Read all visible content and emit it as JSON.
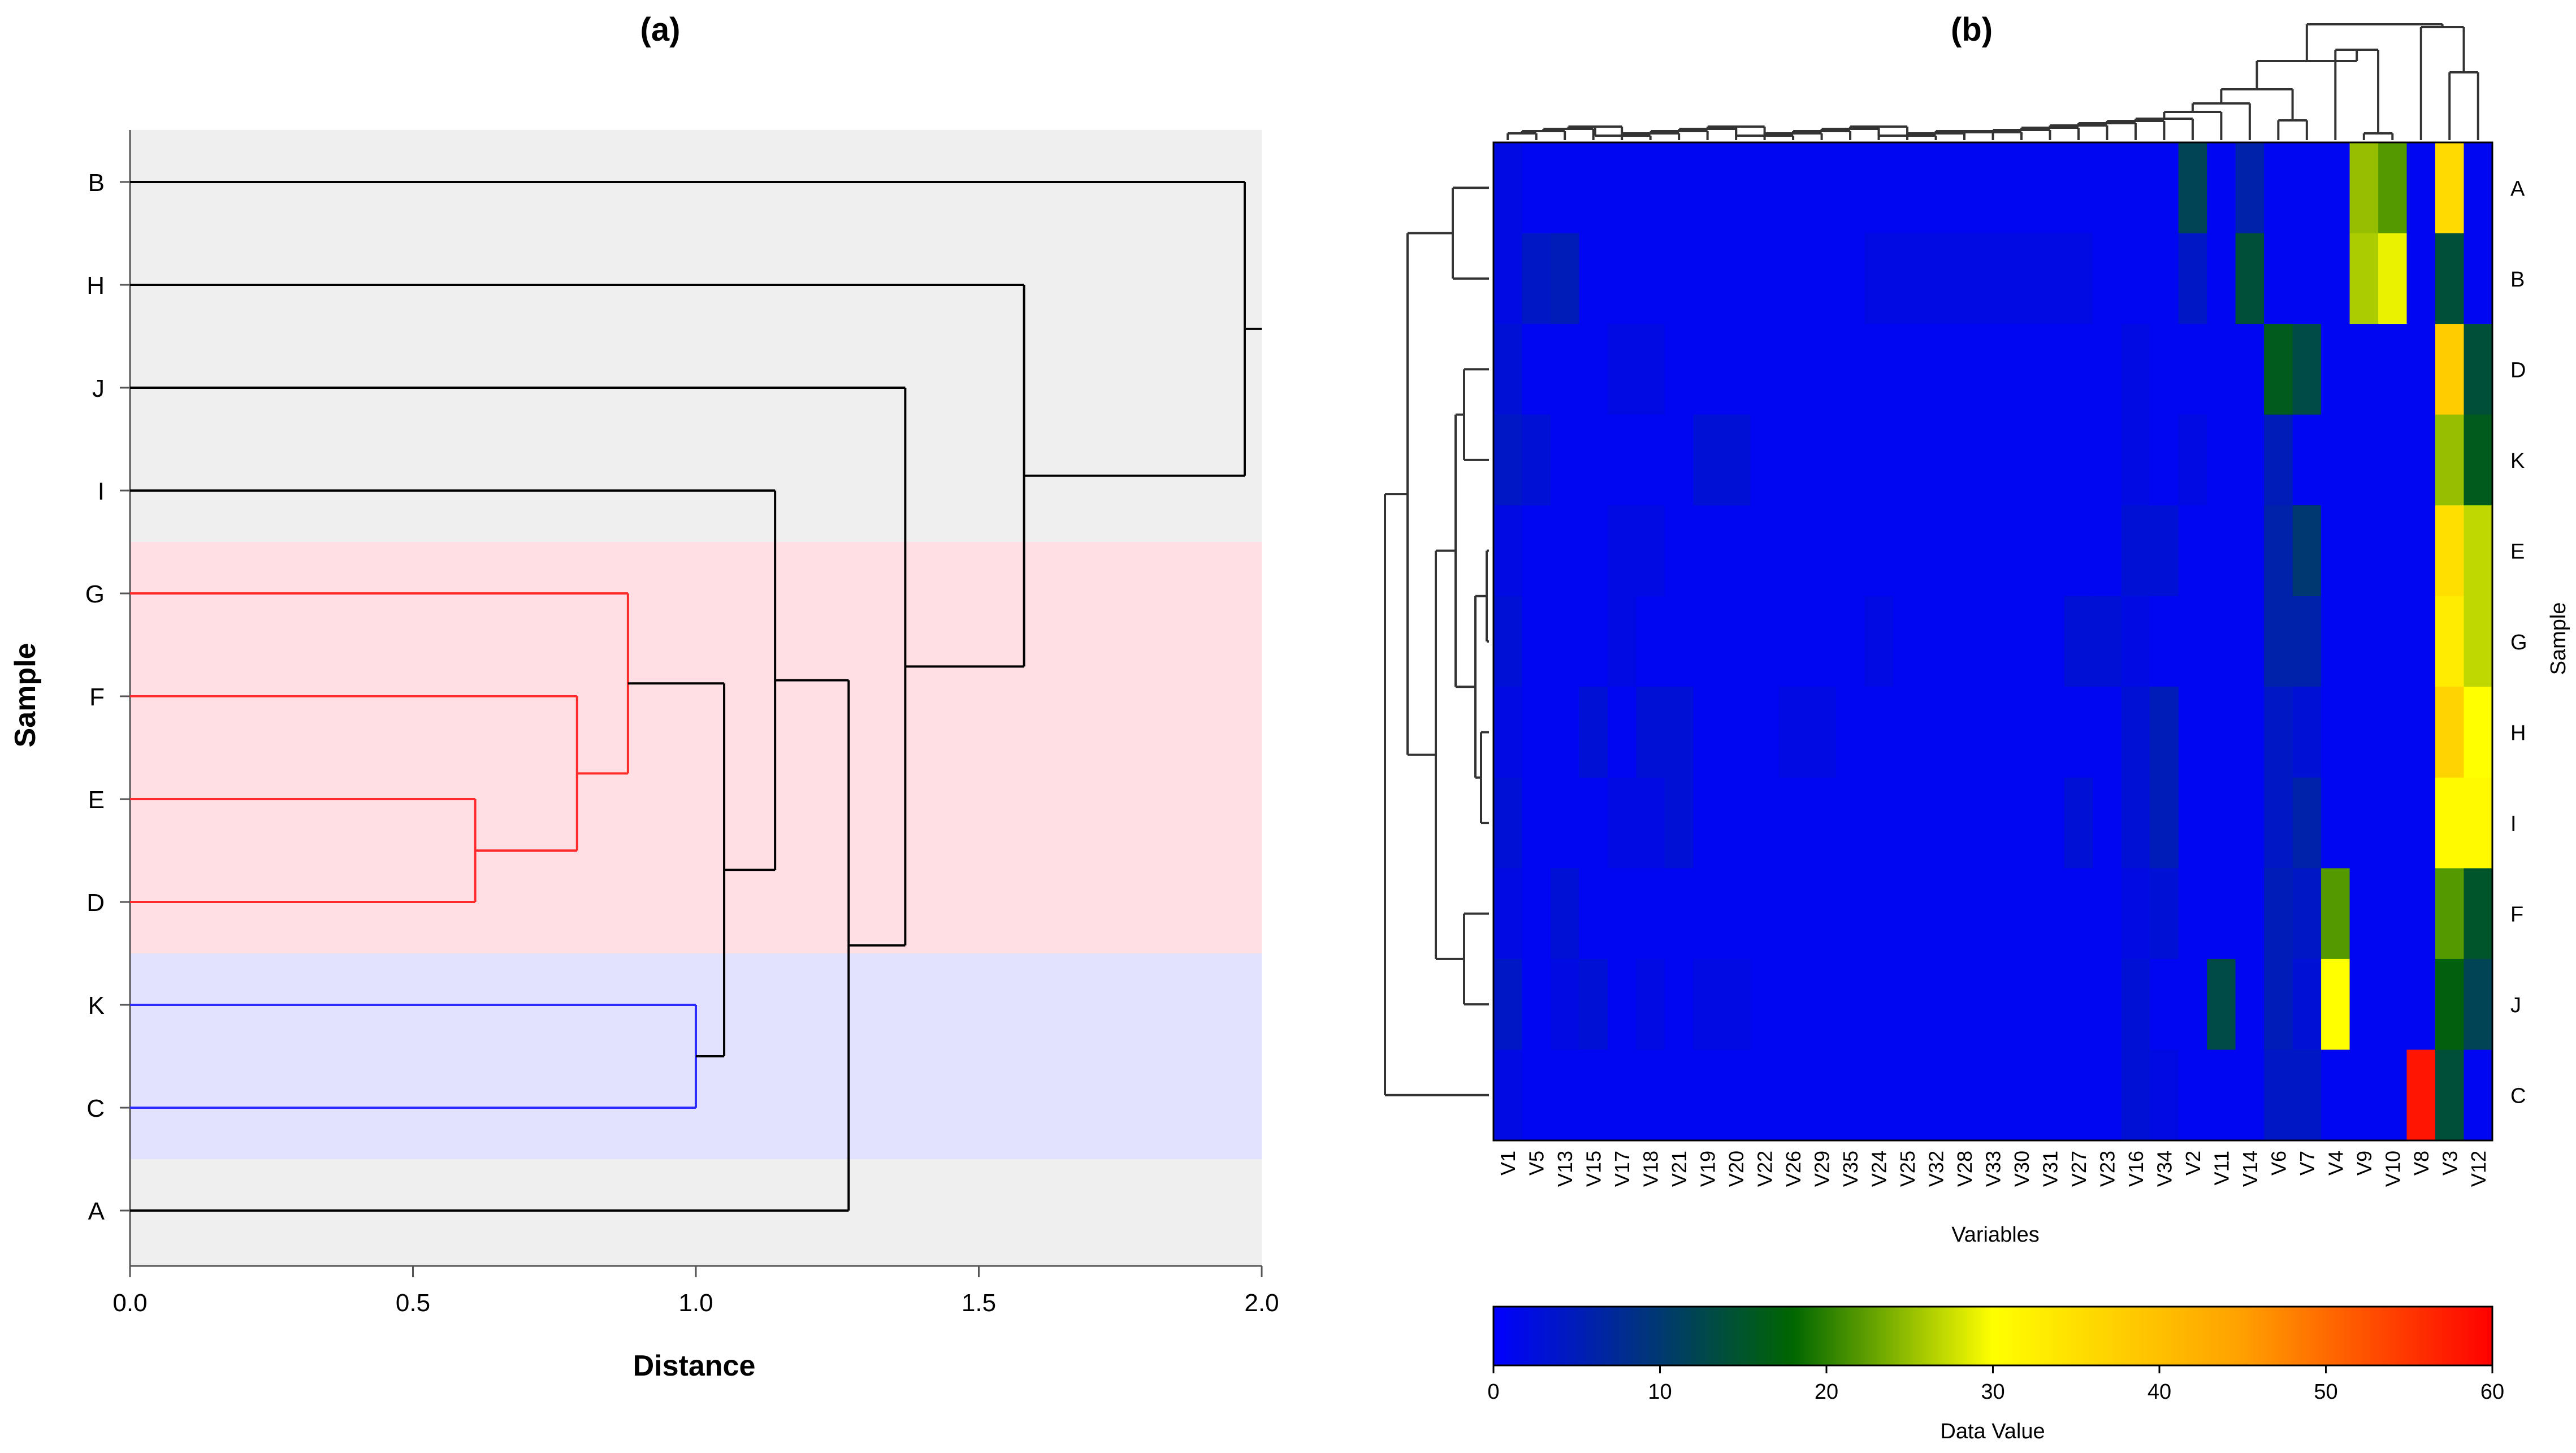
{
  "panel_a_title": "(a)",
  "panel_b_title": "(b)",
  "chart_data": [
    {
      "type": "dendrogram",
      "panel": "(a)",
      "xlabel": "Distance",
      "ylabel": "Sample",
      "xlim": [
        0,
        2.0
      ],
      "x_ticks": [
        "0.0",
        "0.5",
        "1.0",
        "1.5",
        "2.0"
      ],
      "leaves": [
        "B",
        "H",
        "J",
        "I",
        "G",
        "F",
        "E",
        "D",
        "K",
        "C",
        "A"
      ],
      "colors": {
        "default": "#000000",
        "red_cluster": "#ff2a2a",
        "blue_cluster": "#2b2bff",
        "bg_grey": "#efefef",
        "bg_red": "#ffdfe3",
        "bg_blue": "#e2e2ff"
      },
      "bands": [
        {
          "color": "grey",
          "from_leaf": "B",
          "to_leaf": "I"
        },
        {
          "color": "red",
          "from_leaf": "G",
          "to_leaf": "D"
        },
        {
          "color": "blue",
          "from_leaf": "K",
          "to_leaf": "C"
        },
        {
          "color": "grey",
          "from_leaf": "A",
          "to_leaf": "A"
        }
      ],
      "merges": [
        {
          "id": "m1",
          "children": [
            "E",
            "D"
          ],
          "height": 0.61,
          "color": "red"
        },
        {
          "id": "m2",
          "children": [
            "F",
            "m1"
          ],
          "height": 0.79,
          "color": "red"
        },
        {
          "id": "m3",
          "children": [
            "G",
            "m2"
          ],
          "height": 0.88,
          "color": "red"
        },
        {
          "id": "m4",
          "children": [
            "K",
            "C"
          ],
          "height": 1.0,
          "color": "blue"
        },
        {
          "id": "m5",
          "children": [
            "m3",
            "m4"
          ],
          "height": 1.05,
          "color": "default"
        },
        {
          "id": "m6",
          "children": [
            "I",
            "m5"
          ],
          "height": 1.14,
          "color": "default"
        },
        {
          "id": "m7",
          "children": [
            "m6",
            "A"
          ],
          "height": 1.27,
          "color": "default"
        },
        {
          "id": "m8",
          "children": [
            "J",
            "m7"
          ],
          "height": 1.37,
          "color": "default"
        },
        {
          "id": "m9",
          "children": [
            "H",
            "m8"
          ],
          "height": 1.58,
          "color": "default"
        },
        {
          "id": "m10",
          "children": [
            "B",
            "m9"
          ],
          "height": 1.97,
          "color": "default"
        }
      ]
    },
    {
      "type": "heatmap",
      "panel": "(b)",
      "xlabel": "Variables",
      "ylabel": "Sample",
      "colorbar_label": "Data Value",
      "colorbar_range": [
        0,
        60
      ],
      "colorbar_ticks": [
        "0",
        "10",
        "20",
        "30",
        "40",
        "50",
        "60"
      ],
      "colorscale": [
        "#0000ff",
        "#006400",
        "#ffff00",
        "#ff0000"
      ],
      "columns": [
        "V1",
        "V5",
        "V13",
        "V15",
        "V17",
        "V18",
        "V21",
        "V19",
        "V20",
        "V22",
        "V26",
        "V29",
        "V35",
        "V24",
        "V25",
        "V32",
        "V28",
        "V33",
        "V30",
        "V31",
        "V27",
        "V23",
        "V16",
        "V34",
        "V2",
        "V11",
        "V14",
        "V6",
        "V7",
        "V4",
        "V9",
        "V10",
        "V8",
        "V3",
        "V12"
      ],
      "rows": [
        "A",
        "B",
        "D",
        "K",
        "E",
        "G",
        "H",
        "I",
        "F",
        "J",
        "C"
      ],
      "values": [
        [
          2,
          1,
          1,
          1,
          1,
          1,
          1,
          1,
          1,
          1,
          1,
          1,
          1,
          1,
          1,
          1,
          1,
          1,
          1,
          1,
          1,
          1,
          1,
          1,
          12,
          1,
          6,
          1,
          1,
          1,
          25,
          22,
          1,
          36,
          1
        ],
        [
          2,
          4,
          5,
          1,
          1,
          1,
          1,
          1,
          1,
          1,
          1,
          1,
          1,
          2,
          2,
          2,
          2,
          2,
          2,
          2,
          2,
          1,
          1,
          1,
          4,
          1,
          14,
          1,
          1,
          1,
          26,
          29,
          1,
          14,
          1
        ],
        [
          3,
          1,
          1,
          1,
          2,
          2,
          1,
          1,
          1,
          1,
          1,
          1,
          1,
          1,
          1,
          1,
          1,
          1,
          1,
          1,
          1,
          1,
          2,
          1,
          1,
          1,
          1,
          16,
          13,
          1,
          1,
          1,
          1,
          38,
          14
        ],
        [
          4,
          3,
          1,
          1,
          1,
          1,
          1,
          3,
          3,
          1,
          1,
          1,
          1,
          1,
          1,
          1,
          1,
          1,
          1,
          1,
          1,
          1,
          2,
          1,
          2,
          1,
          1,
          5,
          1,
          1,
          1,
          1,
          1,
          25,
          16
        ],
        [
          2,
          1,
          1,
          1,
          2,
          2,
          1,
          1,
          1,
          1,
          1,
          1,
          1,
          1,
          1,
          1,
          1,
          1,
          1,
          1,
          1,
          1,
          3,
          3,
          1,
          1,
          1,
          6,
          10,
          1,
          1,
          1,
          1,
          35,
          27
        ],
        [
          3,
          1,
          1,
          1,
          2,
          1,
          1,
          1,
          1,
          1,
          1,
          1,
          1,
          2,
          1,
          1,
          1,
          1,
          1,
          1,
          3,
          3,
          2,
          1,
          1,
          1,
          1,
          6,
          6,
          1,
          1,
          1,
          1,
          33,
          27
        ],
        [
          2,
          1,
          1,
          3,
          1,
          3,
          3,
          1,
          1,
          1,
          2,
          2,
          1,
          1,
          1,
          1,
          1,
          1,
          1,
          1,
          1,
          1,
          3,
          5,
          1,
          1,
          1,
          4,
          3,
          1,
          1,
          1,
          1,
          37,
          30
        ],
        [
          3,
          1,
          1,
          1,
          2,
          2,
          3,
          1,
          1,
          1,
          1,
          1,
          1,
          1,
          1,
          1,
          1,
          1,
          1,
          1,
          3,
          1,
          3,
          5,
          1,
          1,
          1,
          4,
          6,
          1,
          1,
          1,
          1,
          31,
          31
        ],
        [
          2,
          1,
          3,
          1,
          1,
          1,
          1,
          1,
          1,
          1,
          1,
          1,
          1,
          1,
          1,
          1,
          1,
          1,
          1,
          1,
          1,
          1,
          2,
          3,
          1,
          1,
          1,
          5,
          4,
          22,
          1,
          1,
          1,
          22,
          15
        ],
        [
          4,
          1,
          2,
          3,
          1,
          2,
          1,
          2,
          2,
          1,
          1,
          1,
          1,
          1,
          1,
          1,
          1,
          1,
          1,
          1,
          1,
          1,
          3,
          1,
          1,
          13,
          1,
          5,
          3,
          30,
          1,
          1,
          1,
          17,
          12
        ],
        [
          2,
          1,
          1,
          1,
          1,
          1,
          1,
          1,
          1,
          1,
          1,
          1,
          1,
          1,
          1,
          1,
          1,
          1,
          1,
          1,
          1,
          1,
          3,
          2,
          1,
          1,
          1,
          4,
          4,
          1,
          1,
          1,
          58,
          14,
          1
        ]
      ]
    }
  ]
}
